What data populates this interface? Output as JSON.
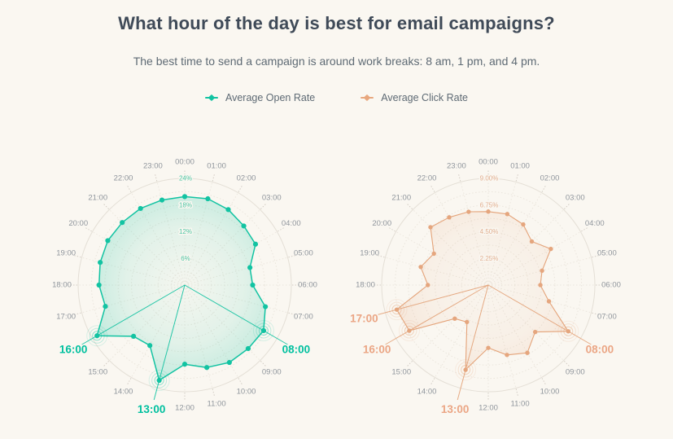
{
  "header": {
    "title": "What hour of the day is best for email campaigns?",
    "subtitle": "The best time to send a campaign is around work breaks: 8 am, 1 pm, and 4 pm."
  },
  "legend": {
    "position": "top",
    "items": [
      {
        "label": "Average Open Rate",
        "color": "#12c3a2"
      },
      {
        "label": "Average Click Rate",
        "color": "#e8a77e"
      }
    ]
  },
  "chart_data": [
    {
      "type": "line",
      "layout": "polar-radar",
      "name": "Average Open Rate",
      "angle_axis_label": "hour of day, clockwise from top",
      "categories": [
        "00:00",
        "01:00",
        "02:00",
        "03:00",
        "04:00",
        "05:00",
        "06:00",
        "07:00",
        "08:00",
        "09:00",
        "10:00",
        "11:00",
        "12:00",
        "13:00",
        "14:00",
        "15:00",
        "16:00",
        "17:00",
        "18:00",
        "19:00",
        "20:00",
        "21:00",
        "22:00",
        "23:00"
      ],
      "values": [
        19.9,
        20.1,
        19.6,
        18.8,
        18.4,
        15.2,
        15.3,
        18.8,
        20.5,
        20.2,
        20.1,
        19.2,
        17.8,
        22.2,
        15.7,
        16.3,
        22.8,
        18.5,
        19.3,
        19.7,
        20.0,
        19.9,
        19.9,
        19.8
      ],
      "unit": "%",
      "radial_axis": {
        "min": 0,
        "max": 24,
        "rings": 8,
        "tick_values": [
          6,
          12,
          18,
          24
        ],
        "tick_labels": [
          "6%",
          "12%",
          "18%",
          "24%"
        ]
      },
      "highlighted_hours": [
        "08:00",
        "13:00",
        "16:00"
      ],
      "grid": "dotted rings and spokes",
      "colors": {
        "line": "#12c3a2",
        "dot": "#12c3a2",
        "highlight_label": "#00c09f",
        "axis_label": "#4cc6a4",
        "fill_opacity": 0.26
      },
      "style": {
        "line_width": 1.5,
        "dot_radius": 3.1
      }
    },
    {
      "type": "line",
      "layout": "polar-radar",
      "name": "Average Click Rate",
      "angle_axis_label": "hour of day, clockwise from top",
      "categories": [
        "00:00",
        "01:00",
        "02:00",
        "03:00",
        "04:00",
        "05:00",
        "06:00",
        "07:00",
        "08:00",
        "09:00",
        "10:00",
        "11:00",
        "12:00",
        "13:00",
        "14:00",
        "15:00",
        "16:00",
        "17:00",
        "18:00",
        "19:00",
        "20:00",
        "21:00",
        "22:00",
        "23:00"
      ],
      "values": [
        6.2,
        6.2,
        5.9,
        5.2,
        6.1,
        4.7,
        4.4,
        5.3,
        7.8,
        5.6,
        6.6,
        6.1,
        5.3,
        7.4,
        3.6,
        4.0,
        7.7,
        8.0,
        5.1,
        5.9,
        5.3,
        6.9,
        6.6,
        6.4
      ],
      "unit": "%",
      "radial_axis": {
        "min": 0,
        "max": 9,
        "rings": 8,
        "tick_values": [
          2.25,
          4.5,
          6.75,
          9
        ],
        "tick_labels": [
          "2.25%",
          "4.50%",
          "6.75%",
          "9.00%"
        ]
      },
      "highlighted_hours": [
        "08:00",
        "13:00",
        "16:00",
        "17:00"
      ],
      "grid": "dotted rings and spokes",
      "colors": {
        "line": "#e4a379",
        "dot": "#e5a67e",
        "highlight_label": "#eba685",
        "axis_label": "#e2b092",
        "fill_opacity": 0.22
      },
      "style": {
        "line_width": 1.1,
        "dot_radius": 2.7
      }
    }
  ]
}
